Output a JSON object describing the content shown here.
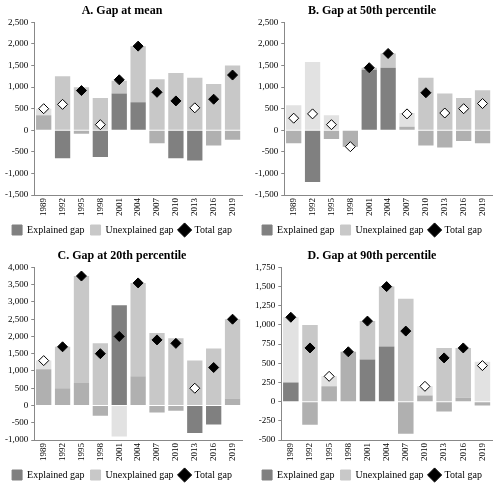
{
  "chart_data": [
    {
      "type": "bar",
      "title": "A. Gap at mean",
      "categories": [
        "1989",
        "1992",
        "1995",
        "1998",
        "2001",
        "2004",
        "2007",
        "2010",
        "2013",
        "2016",
        "2019"
      ],
      "stacked": true,
      "grid": false,
      "legend": "bottom",
      "ylim": [
        -1500,
        2500
      ],
      "yticks": [
        {
          "value": -1500,
          "label": "-1,500"
        },
        {
          "value": -1000,
          "label": "-1,000"
        },
        -500,
        0,
        500,
        {
          "value": 1000,
          "label": "1,000"
        },
        {
          "value": 1500,
          "label": "1,500"
        },
        {
          "value": 2000,
          "label": "2,000"
        },
        {
          "value": 2500,
          "label": "2,500"
        }
      ],
      "series": [
        {
          "name": "Explained gap",
          "type": "bar",
          "color": "#808080",
          "colors": [
            "#b0b0b0",
            "#808080",
            "#b0b0b0",
            "#808080",
            "#808080",
            "#808080",
            "#b0b0b0",
            "#808080",
            "#808080",
            "#b0b0b0",
            "#b0b0b0"
          ],
          "values": [
            350,
            -650,
            -80,
            -620,
            850,
            650,
            -300,
            -650,
            -700,
            -350,
            -220
          ]
        },
        {
          "name": "Unexplained gap",
          "type": "bar",
          "color": "#c8c8c8",
          "colors": [
            "#e2e2e2",
            "#c8c8c8",
            "#c8c8c8",
            "#c8c8c8",
            "#c8c8c8",
            "#c8c8c8",
            "#c8c8c8",
            "#c8c8c8",
            "#c8c8c8",
            "#c8c8c8",
            "#c8c8c8"
          ],
          "values": [
            150,
            1250,
            1000,
            750,
            300,
            1300,
            1180,
            1330,
            1220,
            1070,
            1500
          ]
        },
        {
          "name": "Total gap",
          "type": "scatter",
          "marker": "diamond",
          "color": "#000000",
          "colors": [
            "#ffffff",
            "#ffffff",
            "#000000",
            "#ffffff",
            "#000000",
            "#000000",
            "#000000",
            "#000000",
            "#ffffff",
            "#000000",
            "#000000"
          ],
          "values": [
            500,
            600,
            920,
            130,
            1170,
            1950,
            880,
            680,
            520,
            720,
            1280
          ]
        }
      ]
    },
    {
      "type": "bar",
      "title": "B. Gap at 50th percentile",
      "categories": [
        "1989",
        "1992",
        "1995",
        "1998",
        "2001",
        "2004",
        "2007",
        "2010",
        "2013",
        "2016",
        "2019"
      ],
      "stacked": true,
      "grid": false,
      "legend": "bottom",
      "ylim": [
        -1500,
        2500
      ],
      "yticks": [
        {
          "value": -1500,
          "label": "-1,500"
        },
        {
          "value": -1000,
          "label": "-1,000"
        },
        -500,
        0,
        500,
        {
          "value": 1000,
          "label": "1,000"
        },
        {
          "value": 1500,
          "label": "1,500"
        },
        {
          "value": 2000,
          "label": "2,000"
        },
        {
          "value": 2500,
          "label": "2,500"
        }
      ],
      "series": [
        {
          "name": "Explained gap",
          "type": "bar",
          "color": "#808080",
          "colors": [
            "#b0b0b0",
            "#808080",
            "#b0b0b0",
            "#b0b0b0",
            "#808080",
            "#808080",
            "#b0b0b0",
            "#b0b0b0",
            "#b0b0b0",
            "#b0b0b0",
            "#b0b0b0"
          ],
          "values": [
            -300,
            -1200,
            -200,
            -380,
            1400,
            1450,
            80,
            -350,
            -400,
            -250,
            -300
          ]
        },
        {
          "name": "Unexplained gap",
          "type": "bar",
          "color": "#c8c8c8",
          "colors": [
            "#e2e2e2",
            "#e2e2e2",
            "#e2e2e2",
            "#e2e2e2",
            "#c8c8c8",
            "#c8c8c8",
            "#e2e2e2",
            "#c8c8c8",
            "#c8c8c8",
            "#c8c8c8",
            "#c8c8c8"
          ],
          "values": [
            580,
            1580,
            350,
            0,
            50,
            330,
            320,
            1220,
            850,
            750,
            930
          ]
        },
        {
          "name": "Total gap",
          "type": "scatter",
          "marker": "diamond",
          "color": "#000000",
          "colors": [
            "#ffffff",
            "#ffffff",
            "#ffffff",
            "#ffffff",
            "#000000",
            "#000000",
            "#ffffff",
            "#000000",
            "#ffffff",
            "#ffffff",
            "#ffffff"
          ],
          "values": [
            280,
            380,
            130,
            -380,
            1450,
            1780,
            380,
            870,
            400,
            500,
            620
          ]
        }
      ]
    },
    {
      "type": "bar",
      "title": "C. Gap at 20th percentile",
      "categories": [
        "1989",
        "1992",
        "1995",
        "1998",
        "2001",
        "2004",
        "2007",
        "2010",
        "2013",
        "2016",
        "2019"
      ],
      "stacked": true,
      "grid": false,
      "legend": "bottom",
      "ylim": [
        -1000,
        4000
      ],
      "yticks": [
        {
          "value": -1000,
          "label": "-1,000"
        },
        -500,
        0,
        500,
        {
          "value": 1000,
          "label": "1,000"
        },
        {
          "value": 1500,
          "label": "1,500"
        },
        {
          "value": 2000,
          "label": "2,000"
        },
        {
          "value": 2500,
          "label": "2,500"
        },
        {
          "value": 3000,
          "label": "3,000"
        },
        {
          "value": 3500,
          "label": "3,500"
        },
        {
          "value": 4000,
          "label": "4,000"
        }
      ],
      "series": [
        {
          "name": "Explained gap",
          "type": "bar",
          "color": "#808080",
          "colors": [
            "#b0b0b0",
            "#b0b0b0",
            "#b0b0b0",
            "#b0b0b0",
            "#808080",
            "#b0b0b0",
            "#b0b0b0",
            "#b0b0b0",
            "#808080",
            "#808080",
            "#b0b0b0"
          ],
          "values": [
            1050,
            500,
            650,
            -300,
            2900,
            850,
            -200,
            -150,
            -800,
            -550,
            200
          ]
        },
        {
          "name": "Unexplained gap",
          "type": "bar",
          "color": "#c8c8c8",
          "colors": [
            "#e2e2e2",
            "#c8c8c8",
            "#c8c8c8",
            "#c8c8c8",
            "#e2e2e2",
            "#c8c8c8",
            "#c8c8c8",
            "#c8c8c8",
            "#c8c8c8",
            "#c8c8c8",
            "#c8c8c8"
          ],
          "values": [
            250,
            1200,
            3100,
            1800,
            -900,
            2700,
            2100,
            1950,
            1300,
            1650,
            2300
          ]
        },
        {
          "name": "Total gap",
          "type": "scatter",
          "marker": "diamond",
          "color": "#000000",
          "colors": [
            "#ffffff",
            "#000000",
            "#000000",
            "#000000",
            "#000000",
            "#000000",
            "#000000",
            "#000000",
            "#ffffff",
            "#000000",
            "#000000"
          ],
          "values": [
            1300,
            1700,
            3750,
            1500,
            2000,
            3550,
            1900,
            1800,
            500,
            1100,
            2500
          ]
        }
      ]
    },
    {
      "type": "bar",
      "title": "D. Gap at 90th percentile",
      "categories": [
        "1989",
        "1992",
        "1995",
        "1998",
        "2001",
        "2004",
        "2007",
        "2010",
        "2013",
        "2016",
        "2019"
      ],
      "stacked": true,
      "grid": false,
      "legend": "bottom",
      "ylim": [
        -500,
        1750
      ],
      "yticks": [
        -500,
        -250,
        0,
        250,
        500,
        750,
        {
          "value": 1000,
          "label": "1,000"
        },
        {
          "value": 1250,
          "label": "1,250"
        },
        {
          "value": 1500,
          "label": "1,500"
        },
        {
          "value": 1750,
          "label": "1,750"
        }
      ],
      "series": [
        {
          "name": "Explained gap",
          "type": "bar",
          "color": "#808080",
          "colors": [
            "#808080",
            "#b0b0b0",
            "#b0b0b0",
            "#b0b0b0",
            "#808080",
            "#808080",
            "#b0b0b0",
            "#b0b0b0",
            "#b0b0b0",
            "#b0b0b0",
            "#b0b0b0"
          ],
          "values": [
            250,
            -300,
            200,
            650,
            550,
            720,
            -420,
            80,
            -130,
            50,
            -50
          ]
        },
        {
          "name": "Unexplained gap",
          "type": "bar",
          "color": "#c8c8c8",
          "colors": [
            "#e2e2e2",
            "#c8c8c8",
            "#e2e2e2",
            "#e2e2e2",
            "#c8c8c8",
            "#c8c8c8",
            "#c8c8c8",
            "#e2e2e2",
            "#c8c8c8",
            "#c8c8c8",
            "#e2e2e2"
          ],
          "values": [
            850,
            1000,
            130,
            0,
            500,
            780,
            1340,
            120,
            700,
            650,
            520
          ]
        },
        {
          "name": "Total gap",
          "type": "scatter",
          "marker": "diamond",
          "color": "#000000",
          "colors": [
            "#000000",
            "#000000",
            "#ffffff",
            "#000000",
            "#000000",
            "#000000",
            "#000000",
            "#ffffff",
            "#000000",
            "#000000",
            "#ffffff"
          ],
          "values": [
            1100,
            700,
            330,
            650,
            1050,
            1500,
            920,
            200,
            570,
            700,
            470
          ]
        }
      ]
    }
  ]
}
